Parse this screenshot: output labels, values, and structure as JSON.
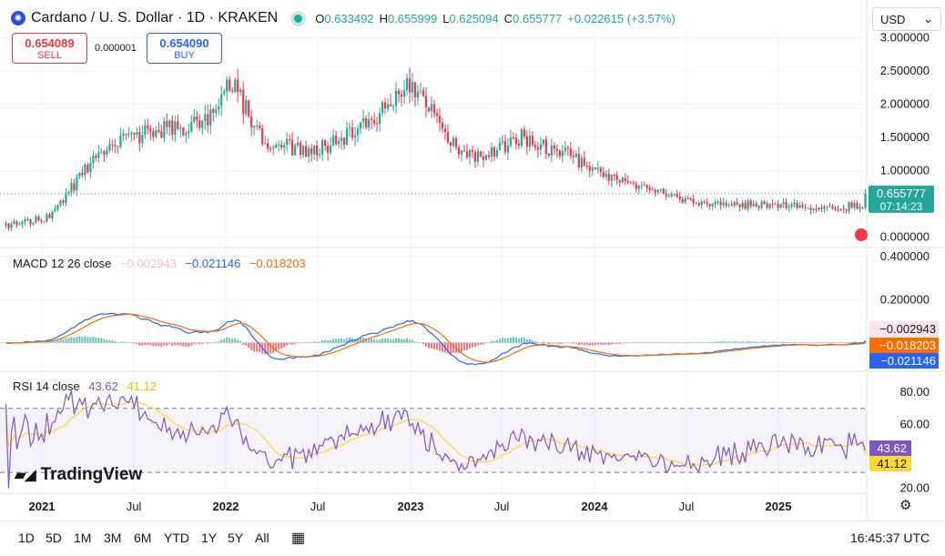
{
  "header": {
    "title": "Cardano / U. S. Dollar · 1D · KRAKEN",
    "coin_icon": "cardano-logo-icon",
    "open_label": "O",
    "open": "0.633492",
    "high_label": "H",
    "high": "0.655999",
    "low_label": "L",
    "low": "0.625094",
    "close_label": "C",
    "close": "0.655777",
    "change": "+0.022615 (+3.57%)",
    "currency": "USD"
  },
  "trade": {
    "sell_price": "0.654089",
    "sell_label": "SELL",
    "spread": "0.000001",
    "buy_price": "0.654090",
    "buy_label": "BUY"
  },
  "indicators": {
    "macd_title": "MACD 12 26 close",
    "macd_hist": "−0.002943",
    "macd_line": "−0.021146",
    "macd_signal": "−0.018203",
    "rsi_title": "RSI 14 close",
    "rsi_value": "43.62",
    "rsi_ma": "41.12"
  },
  "branding": {
    "logo_text": "TradingView"
  },
  "timeframes": [
    "1D",
    "5D",
    "1M",
    "3M",
    "6M",
    "YTD",
    "1Y",
    "5Y",
    "All"
  ],
  "clock": "16:45:37 UTC",
  "colors": {
    "up": "#26a69a",
    "down": "#f23645",
    "macd": "#2962ff",
    "signal": "#f7525f",
    "rsi": "#7e57c2",
    "rsi_ma": "#fdd835"
  },
  "chart_data": [
    {
      "type": "candlestick",
      "title": "Cardano / U. S. Dollar · 1D · KRAKEN",
      "x_ticks": [
        "2021",
        "Jul",
        "2022",
        "Jul",
        "2023",
        "Jul",
        "2024",
        "Jul",
        "2025"
      ],
      "y_ticks": [
        "3.000000",
        "2.500000",
        "2.000000",
        "1.500000",
        "1.000000",
        "0.000000"
      ],
      "ylim": [
        -0.1,
        3.05
      ],
      "last_price": "0.655777",
      "last_price_value": 0.655777,
      "countdown": "07:14:23",
      "grid": true,
      "price_path": [
        [
          0,
          0.18
        ],
        [
          0.05,
          0.3
        ],
        [
          0.11,
          1.3
        ],
        [
          0.17,
          1.6
        ],
        [
          0.23,
          1.7
        ],
        [
          0.26,
          2.4
        ],
        [
          0.3,
          1.4
        ],
        [
          0.36,
          1.3
        ],
        [
          0.42,
          1.7
        ],
        [
          0.47,
          2.35
        ],
        [
          0.52,
          1.4
        ],
        [
          0.55,
          1.2
        ],
        [
          0.6,
          1.5
        ],
        [
          0.65,
          1.25
        ],
        [
          0.7,
          0.95
        ],
        [
          0.75,
          0.7
        ],
        [
          0.8,
          0.55
        ],
        [
          0.85,
          0.5
        ],
        [
          1.0,
          0.45
        ]
      ]
    },
    {
      "type": "line",
      "title": "MACD 12 26 close",
      "y_ticks": [
        "0.400000",
        "0.200000"
      ],
      "ylim": [
        -0.12,
        0.43
      ],
      "series": [
        {
          "name": "MACD",
          "value": -0.021146
        },
        {
          "name": "Signal",
          "value": -0.018203
        },
        {
          "name": "Histogram",
          "value": -0.002943
        }
      ]
    },
    {
      "type": "line",
      "title": "RSI 14 close",
      "y_ticks": [
        "80.00",
        "60.00",
        "20.00"
      ],
      "ylim": [
        17,
        92
      ],
      "band": [
        30,
        70
      ],
      "series": [
        {
          "name": "RSI",
          "value": 43.62
        },
        {
          "name": "RSI MA",
          "value": 41.12
        }
      ]
    }
  ]
}
